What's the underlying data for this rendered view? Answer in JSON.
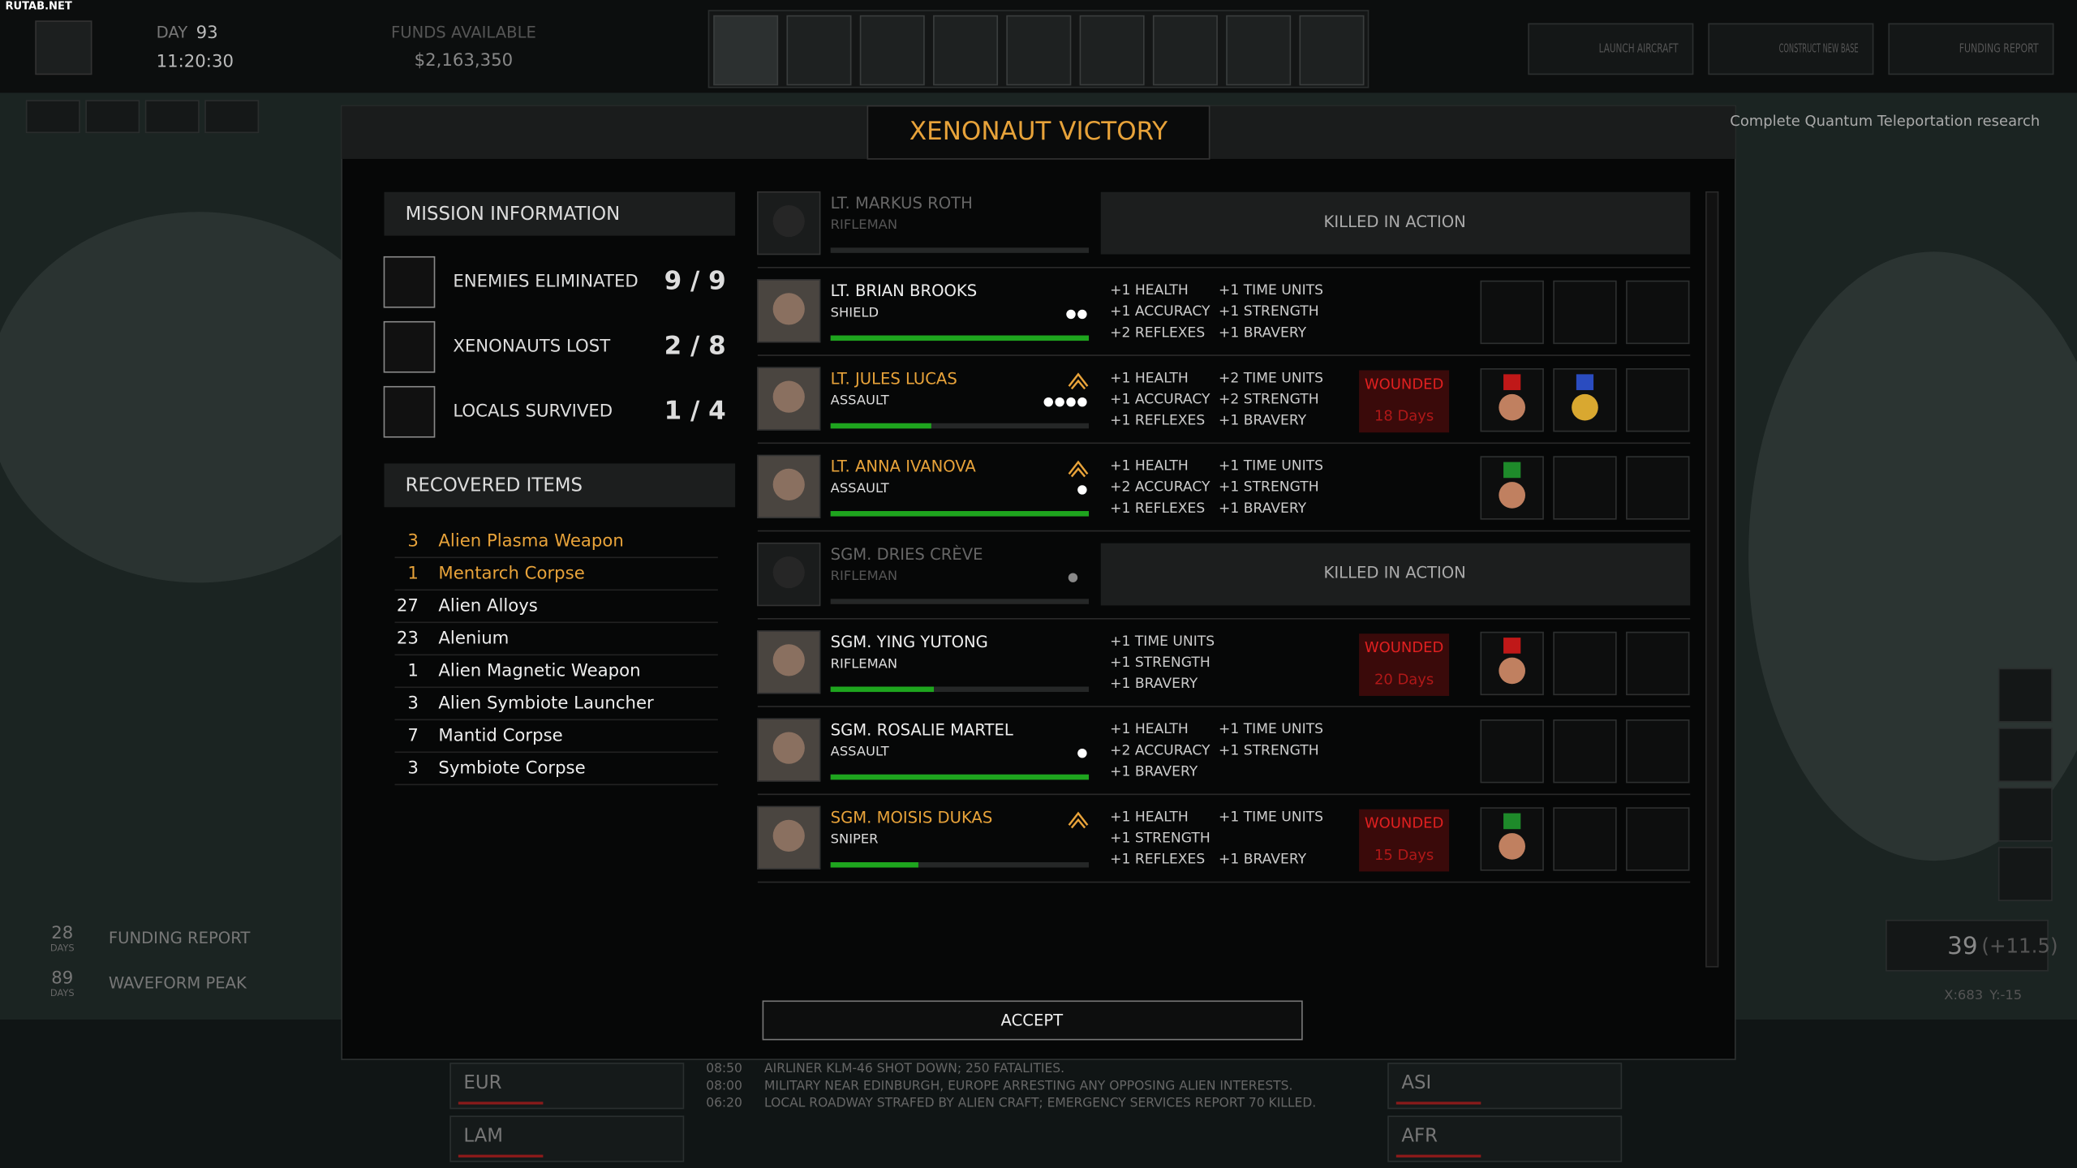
{
  "watermark": "RUTAB.NET",
  "top_bar": {
    "day_label": "DAY",
    "day": 93,
    "time": "11:20:30",
    "funds_label": "FUNDS AVAILABLE",
    "funds": "$2,163,350",
    "buttons": [
      "LAUNCH AIRCRAFT",
      "CONSTRUCT NEW BASE",
      "FUNDING REPORT"
    ]
  },
  "objective": "Complete Quantum Teleportation research",
  "dialog": {
    "title": "XENONAUT VICTORY",
    "mission_heading": "MISSION INFORMATION",
    "stats": [
      {
        "label": "ENEMIES ELIMINATED",
        "value": "9 / 9"
      },
      {
        "label": "XENONAUTS LOST",
        "value": "2 / 8"
      },
      {
        "label": "LOCALS SURVIVED",
        "value": "1 / 4"
      }
    ],
    "items_heading": "RECOVERED ITEMS",
    "items": [
      {
        "count": 3,
        "name": "Alien Plasma Weapon",
        "highlight": true
      },
      {
        "count": 1,
        "name": "Mentarch Corpse",
        "highlight": true
      },
      {
        "count": 27,
        "name": "Alien Alloys",
        "highlight": false
      },
      {
        "count": 23,
        "name": "Alenium",
        "highlight": false
      },
      {
        "count": 1,
        "name": "Alien Magnetic Weapon",
        "highlight": false
      },
      {
        "count": 3,
        "name": "Alien Symbiote Launcher",
        "highlight": false
      },
      {
        "count": 7,
        "name": "Mantid Corpse",
        "highlight": false
      },
      {
        "count": 3,
        "name": "Symbiote Corpse",
        "highlight": false
      }
    ],
    "soldiers": [
      {
        "name": "LT. MARKUS ROTH",
        "role": "RIFLEMAN",
        "status": "KILLED IN ACTION",
        "promotion": false,
        "kills": 0,
        "bar": 0,
        "left": [],
        "right": [],
        "medals": 0
      },
      {
        "name": "LT. BRIAN BROOKS",
        "role": "SHIELD",
        "promotion": false,
        "kills": 2,
        "bar": 100,
        "left": [
          "+1 HEALTH",
          "+1 ACCURACY",
          "+2 REFLEXES"
        ],
        "right": [
          "+1 TIME UNITS",
          "+1 STRENGTH",
          "+1 BRAVERY"
        ],
        "medals": 0
      },
      {
        "name": "LT. JULES LUCAS",
        "role": "ASSAULT",
        "promotion": true,
        "kills": 4,
        "bar": 39,
        "left": [
          "+1 HEALTH",
          "+1 ACCURACY",
          "+1 REFLEXES"
        ],
        "right": [
          "+2 TIME UNITS",
          "+2 STRENGTH",
          "+1 BRAVERY"
        ],
        "wounded": "WOUNDED",
        "days": "18 Days",
        "medals": 2
      },
      {
        "name": "LT. ANNA IVANOVA",
        "role": "ASSAULT",
        "promotion": true,
        "kills": 1,
        "bar": 100,
        "left": [
          "+1 HEALTH",
          "+2 ACCURACY",
          "+1 REFLEXES"
        ],
        "right": [
          "+1 TIME UNITS",
          "+1 STRENGTH",
          "+1 BRAVERY"
        ],
        "medals": 1
      },
      {
        "name": "SGM. DRIES CRÈVE",
        "role": "RIFLEMAN",
        "status": "KILLED IN ACTION",
        "promotion": false,
        "kills": 1,
        "bar": 0,
        "left": [],
        "right": [],
        "medals": 0
      },
      {
        "name": "SGM. YING YUTONG",
        "role": "RIFLEMAN",
        "promotion": false,
        "kills": 0,
        "bar": 40,
        "left": [
          "+1 TIME UNITS",
          "+1 STRENGTH",
          "+1 BRAVERY"
        ],
        "right": [],
        "wounded": "WOUNDED",
        "days": "20 Days",
        "medals": 1
      },
      {
        "name": "SGM. ROSALIE MARTEL",
        "role": "ASSAULT",
        "promotion": false,
        "kills": 1,
        "bar": 100,
        "left": [
          "+1 HEALTH",
          "+2 ACCURACY",
          "+1 BRAVERY"
        ],
        "right": [
          "+1 TIME UNITS",
          "+1 STRENGTH"
        ],
        "medals": 0
      },
      {
        "name": "SGM. MOISIS DUKAS",
        "role": "SNIPER",
        "promotion": true,
        "kills": 0,
        "bar": 34,
        "left": [
          "+1 HEALTH",
          "+1 STRENGTH",
          "+1 REFLEXES"
        ],
        "right": [
          "+1 TIME UNITS",
          null,
          "+1 BRAVERY"
        ],
        "wounded": "WOUNDED",
        "days": "15 Days",
        "medals": 1
      }
    ],
    "accept": "ACCEPT"
  },
  "timers": [
    {
      "days": 28,
      "unit": "DAYS",
      "label": "FUNDING REPORT"
    },
    {
      "days": 89,
      "unit": "DAYS",
      "label": "WAVEFORM PEAK"
    }
  ],
  "score": {
    "value": 39,
    "delta": "(+11.5)",
    "x": "X:683",
    "y": "Y:-15"
  },
  "regions": [
    "EUR",
    "LAM",
    "ASI",
    "AFR"
  ],
  "events": [
    {
      "time": "08:50",
      "text": "AIRLINER KLM-46 SHOT DOWN; 250 FATALITIES."
    },
    {
      "time": "08:00",
      "text": "MILITARY NEAR EDINBURGH, EUROPE ARRESTING ANY OPPOSING ALIEN INTERESTS."
    },
    {
      "time": "06:20",
      "text": "LOCAL ROADWAY STRAFED BY ALIEN CRAFT; EMERGENCY SERVICES REPORT 70 KILLED."
    }
  ]
}
